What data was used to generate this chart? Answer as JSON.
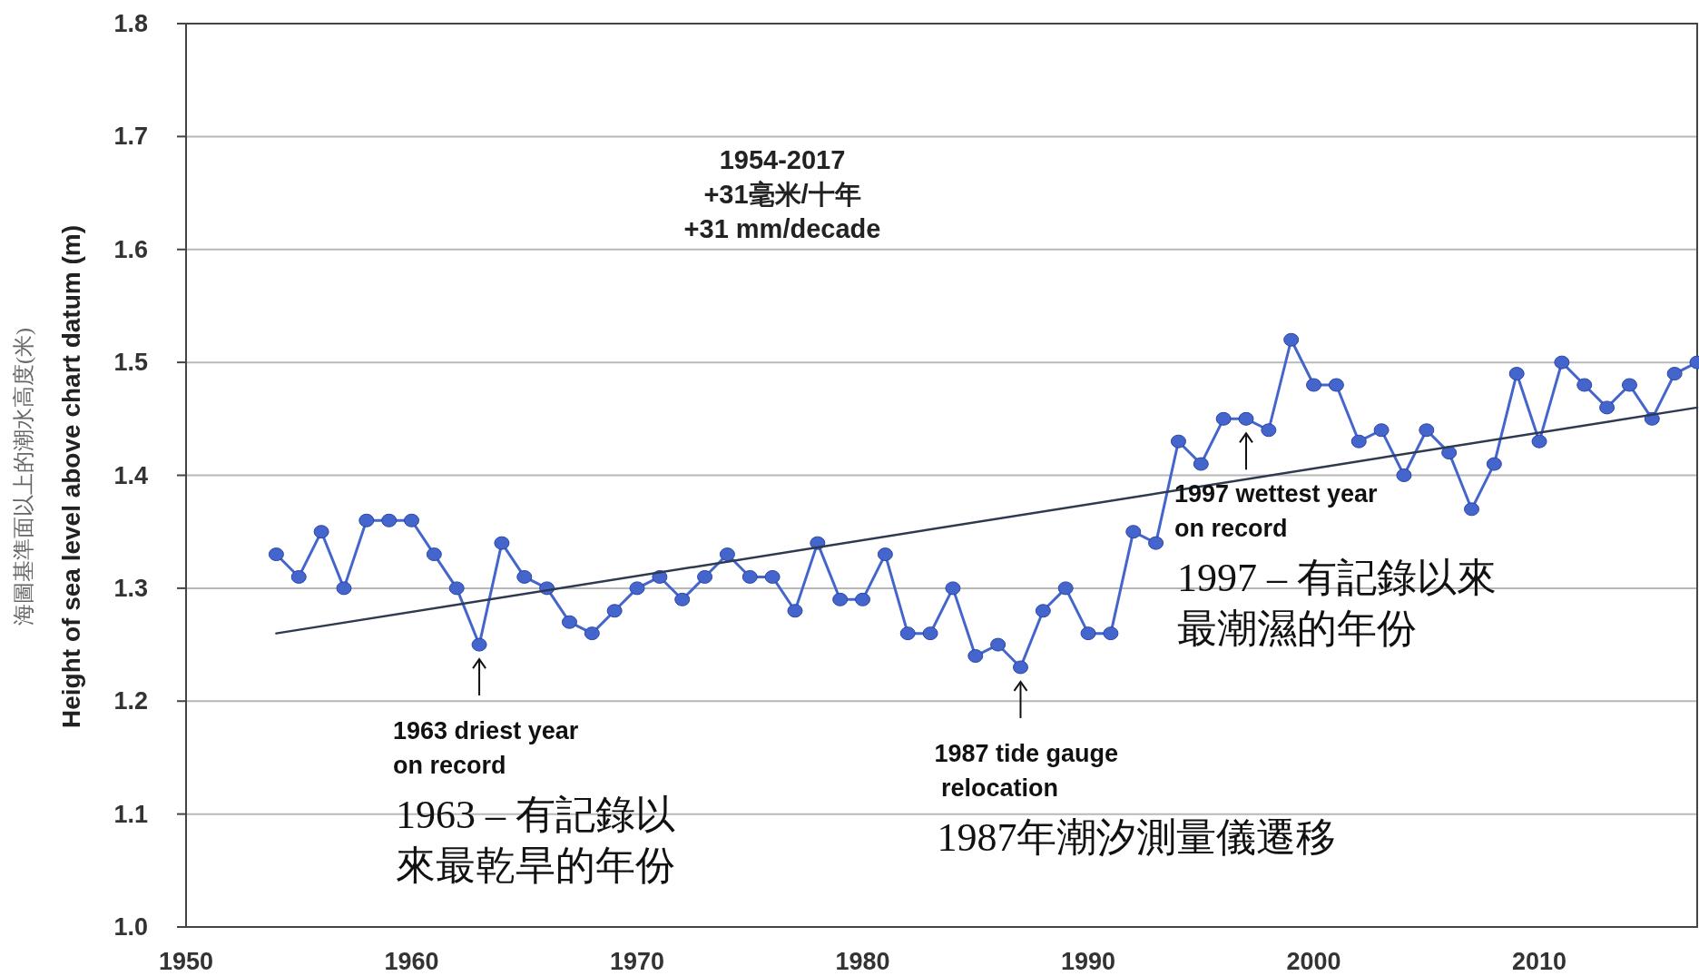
{
  "chart_data": {
    "type": "line",
    "ylabel": "海圖基準面以上的潮水高度(米)\nHeight of sea level above chart datum (m)",
    "xlim": [
      1950,
      2017
    ],
    "xticks": [
      1950,
      1960,
      1970,
      1980,
      1990,
      2000,
      2010
    ],
    "ylim": [
      1.0,
      1.8
    ],
    "yticks": [
      {
        "value": 1.0,
        "label": "1.0"
      },
      1.1,
      1.2,
      1.3,
      1.4,
      1.5,
      1.6,
      1.7,
      1.8
    ],
    "grid": "y",
    "series": [
      {
        "type": "line",
        "color": "#4466cc",
        "marker": "circle",
        "x": [
          1954,
          1955,
          1956,
          1957,
          1958,
          1959,
          1960,
          1961,
          1962,
          1963,
          1964,
          1965,
          1966,
          1967,
          1968,
          1969,
          1970,
          1971,
          1972,
          1973,
          1974,
          1975,
          1976,
          1977,
          1978,
          1979,
          1980,
          1981,
          1982,
          1983,
          1984,
          1985,
          1986,
          1987,
          1988,
          1989,
          1990,
          1991,
          1992,
          1993,
          1994,
          1995,
          1996,
          1997,
          1998,
          1999,
          2000,
          2001,
          2002,
          2003,
          2004,
          2005,
          2006,
          2007,
          2008,
          2009,
          2010,
          2011,
          2012,
          2013,
          2014,
          2015,
          2016,
          2017
        ],
        "values": [
          1.33,
          1.31,
          1.35,
          1.3,
          1.36,
          1.36,
          1.36,
          1.33,
          1.3,
          1.25,
          1.34,
          1.31,
          1.3,
          1.27,
          1.26,
          1.28,
          1.3,
          1.31,
          1.29,
          1.31,
          1.33,
          1.31,
          1.31,
          1.28,
          1.34,
          1.29,
          1.29,
          1.33,
          1.26,
          1.26,
          1.3,
          1.24,
          1.25,
          1.23,
          1.28,
          1.3,
          1.26,
          1.26,
          1.35,
          1.34,
          1.43,
          1.41,
          1.45,
          1.45,
          1.44,
          1.52,
          1.48,
          1.48,
          1.43,
          1.44,
          1.4,
          1.44,
          1.42,
          1.37,
          1.41,
          1.49,
          1.43,
          1.5,
          1.48,
          1.46,
          1.48,
          1.45,
          1.49,
          1.5
        ]
      },
      {
        "type": "line",
        "color": "#2e3a50",
        "marker": "none",
        "x": [
          1954,
          2017
        ],
        "values": [
          1.26,
          1.46
        ]
      }
    ],
    "annotations": [
      "1954-2017\n+31毫米/十年\n+31 mm/decade",
      {
        "text": "1963 driest year\non record",
        "x": 1963,
        "y": 1.25
      },
      "1963 – 有記錄以來最乾旱的年份",
      {
        "text": "1987 tide gauge\n relocation",
        "x": 1987,
        "y": 1.23
      },
      "1987年潮汐測量儀遷移",
      {
        "text": "1997 wettest year\non record",
        "x": 1997,
        "y": 1.45
      },
      "1997 – 有記錄以來最潮濕的年份"
    ]
  }
}
